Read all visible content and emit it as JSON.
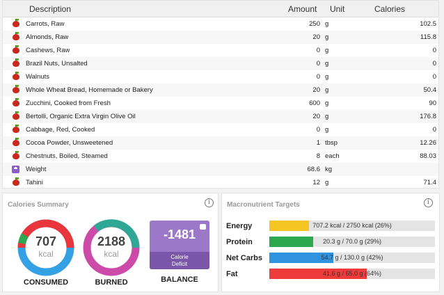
{
  "table": {
    "headers": {
      "description": "Description",
      "amount": "Amount",
      "unit": "Unit",
      "calories": "Calories"
    },
    "rows": [
      {
        "icon": "apple-icon",
        "description": "Carrots, Raw",
        "amount": "250",
        "unit": "g",
        "calories": "102.5"
      },
      {
        "icon": "apple-icon",
        "description": "Almonds, Raw",
        "amount": "20",
        "unit": "g",
        "calories": "115.8"
      },
      {
        "icon": "apple-icon",
        "description": "Cashews, Raw",
        "amount": "0",
        "unit": "g",
        "calories": "0"
      },
      {
        "icon": "apple-icon",
        "description": "Brazil Nuts, Unsalted",
        "amount": "0",
        "unit": "g",
        "calories": "0"
      },
      {
        "icon": "apple-icon",
        "description": "Walnuts",
        "amount": "0",
        "unit": "g",
        "calories": "0"
      },
      {
        "icon": "apple-icon",
        "description": "Whole Wheat Bread, Homemade or Bakery",
        "amount": "20",
        "unit": "g",
        "calories": "50.4"
      },
      {
        "icon": "apple-icon",
        "description": "Zucchini, Cooked from Fresh",
        "amount": "600",
        "unit": "g",
        "calories": "90"
      },
      {
        "icon": "apple-icon",
        "description": "Bertolli, Organic Extra Virgin Olive Oil",
        "amount": "20",
        "unit": "g",
        "calories": "176.8"
      },
      {
        "icon": "apple-icon",
        "description": "Cabbage, Red, Cooked",
        "amount": "0",
        "unit": "g",
        "calories": "0"
      },
      {
        "icon": "apple-icon",
        "description": "Cocoa Powder, Unsweetened",
        "amount": "1",
        "unit": "tbsp",
        "calories": "12.26"
      },
      {
        "icon": "apple-icon",
        "description": "Chestnuts, Boiled, Steamed",
        "amount": "8",
        "unit": "each",
        "calories": "88.03"
      },
      {
        "icon": "scale-icon",
        "description": "Weight",
        "amount": "68.6",
        "unit": "kg",
        "calories": ""
      },
      {
        "icon": "apple-icon",
        "description": "Tahini",
        "amount": "12",
        "unit": "g",
        "calories": "71.4"
      }
    ]
  },
  "summary": {
    "title": "Calories Summary",
    "consumed": {
      "value": "707",
      "unit": "kcal",
      "label": "CONSUMED"
    },
    "burned": {
      "value": "2188",
      "unit": "kcal",
      "label": "BURNED"
    },
    "balance": {
      "value": "-1481",
      "caption": "Calorie Deficit",
      "label": "BALANCE"
    }
  },
  "macros": {
    "title": "Macronutrient Targets",
    "items": [
      {
        "name": "Energy",
        "text": "707.2 kcal / 2750 kcal (26%)",
        "percent": 26,
        "color": "#f5c623"
      },
      {
        "name": "Protein",
        "text": "20.3 g / 70.0 g (29%)",
        "percent": 29,
        "color": "#2ea84f"
      },
      {
        "name": "Net Carbs",
        "text": "54.7 g / 130.0 g (42%)",
        "percent": 42,
        "color": "#2f93e0"
      },
      {
        "name": "Fat",
        "text": "41.6 g / 65.0 g (64%)",
        "percent": 64,
        "color": "#ee3b3b"
      }
    ]
  },
  "colors": {
    "consumed_ring": [
      "#e8363b",
      "#34a1e5",
      "#2ea84f"
    ],
    "burned_ring": [
      "#2ea895",
      "#cc4aa8"
    ],
    "balance_box": "#9c79c8"
  }
}
